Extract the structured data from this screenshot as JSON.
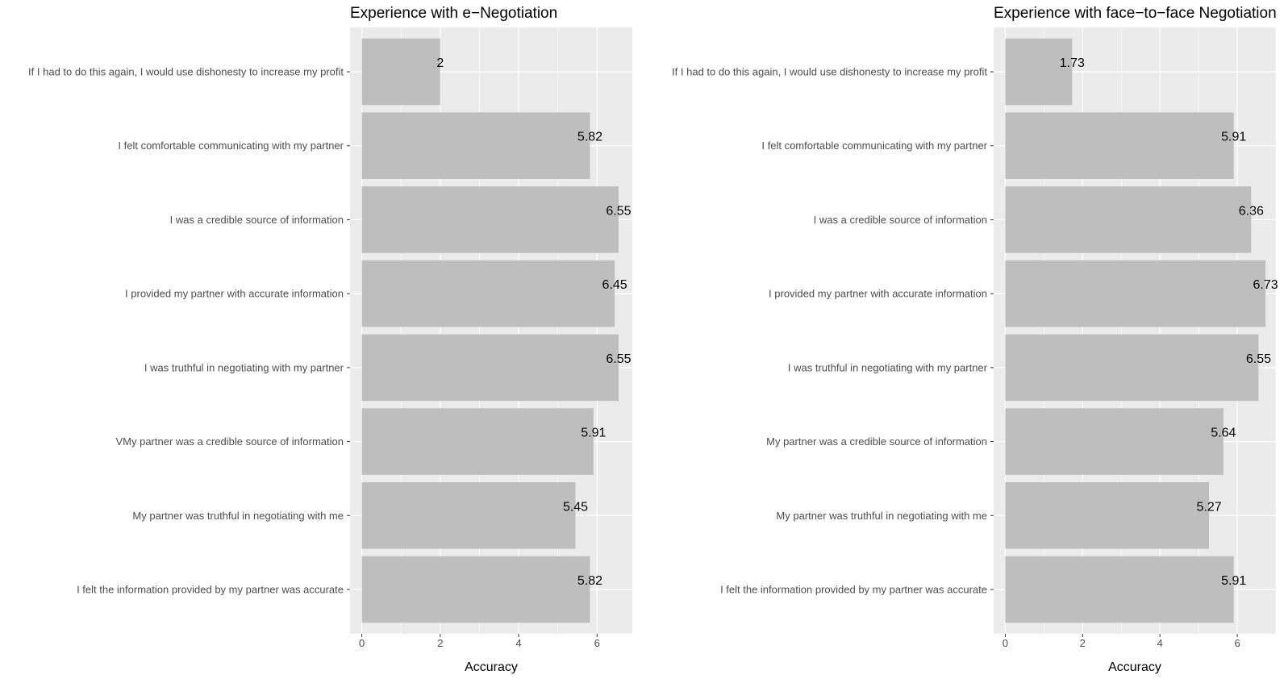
{
  "chart_data": [
    {
      "type": "bar",
      "orientation": "horizontal",
      "title": "Experience with e−Negotiation",
      "xlabel": "Accuracy",
      "ylabel": "",
      "xlim": [
        -0.3,
        6.9
      ],
      "xticks": [
        "0",
        "2",
        "4",
        "6"
      ],
      "grid": true,
      "categories": [
        "If I had to do this again, I would use dishonesty to increase my profit",
        "I felt comfortable communicating with my partner",
        "I was a credible source of information",
        "I provided my partner with accurate information",
        "I was truthful in negotiating with my partner",
        "VMy partner was a credible source of information",
        "My partner was truthful in negotiating with me",
        "I felt the information provided by my partner was accurate"
      ],
      "values": [
        2,
        5.82,
        6.55,
        6.45,
        6.55,
        5.91,
        5.45,
        5.82
      ],
      "data_labels": [
        "2",
        "5.82",
        "6.55",
        "6.45",
        "6.55",
        "5.91",
        "5.45",
        "5.82"
      ]
    },
    {
      "type": "bar",
      "orientation": "horizontal",
      "title": "Experience with face−to−face Negotiation",
      "xlabel": "Accuracy",
      "ylabel": "",
      "xlim": [
        -0.3,
        7.0
      ],
      "xticks": [
        "0",
        "2",
        "4",
        "6"
      ],
      "grid": true,
      "categories": [
        "If I had to do this again, I would use dishonesty to increase my profit",
        "I felt comfortable communicating with my partner",
        "I was a credible source of information",
        "I provided my partner with accurate information",
        "I was truthful in negotiating with my partner",
        "My partner was a credible source of information",
        "My partner was truthful in negotiating with me",
        "I felt the information provided by my partner was accurate"
      ],
      "values": [
        1.73,
        5.91,
        6.36,
        6.73,
        6.55,
        5.64,
        5.27,
        5.91
      ],
      "data_labels": [
        "1.73",
        "5.91",
        "6.36",
        "6.73",
        "6.55",
        "5.64",
        "5.27",
        "5.91"
      ]
    }
  ],
  "colors": {
    "panel_background": "#ebebeb",
    "gridline": "#ffffff",
    "bar_fill": "#bebebe",
    "axis_text": "#4d4d4d",
    "title_text": "#000000"
  }
}
